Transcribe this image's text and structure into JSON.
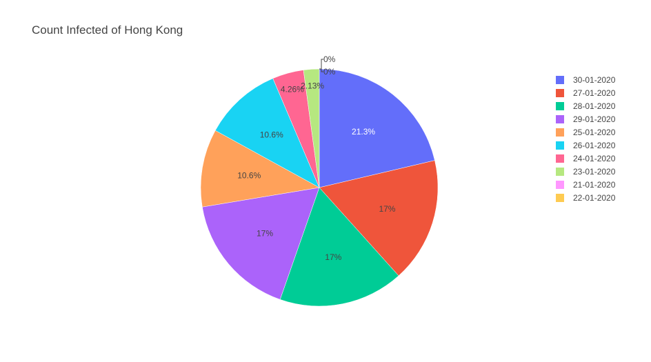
{
  "chart_data": {
    "type": "pie",
    "title": "Count Infected of Hong Kong",
    "slices": [
      {
        "label": "30-01-2020",
        "value": 21.3,
        "text": "21.3%",
        "color": "#636efa",
        "text_color": "#ffffff"
      },
      {
        "label": "27-01-2020",
        "value": 17.0,
        "text": "17%",
        "color": "#ef553b",
        "text_color": "#444444"
      },
      {
        "label": "28-01-2020",
        "value": 17.0,
        "text": "17%",
        "color": "#00cc96",
        "text_color": "#444444"
      },
      {
        "label": "29-01-2020",
        "value": 17.0,
        "text": "17%",
        "color": "#ab63fa",
        "text_color": "#444444"
      },
      {
        "label": "25-01-2020",
        "value": 10.6,
        "text": "10.6%",
        "color": "#ffa15a",
        "text_color": "#444444"
      },
      {
        "label": "26-01-2020",
        "value": 10.6,
        "text": "10.6%",
        "color": "#19d3f3",
        "text_color": "#444444"
      },
      {
        "label": "24-01-2020",
        "value": 4.26,
        "text": "4.26%",
        "color": "#ff6692",
        "text_color": "#444444"
      },
      {
        "label": "23-01-2020",
        "value": 2.13,
        "text": "2.13%",
        "color": "#b6e880",
        "text_color": "#444444"
      },
      {
        "label": "21-01-2020",
        "value": 0,
        "text": "0%",
        "color": "#ff97ff",
        "text_color": "#444444"
      },
      {
        "label": "22-01-2020",
        "value": 0,
        "text": "0%",
        "color": "#fecb52",
        "text_color": "#444444"
      }
    ],
    "legend_position": "right",
    "direction": "clockwise"
  }
}
